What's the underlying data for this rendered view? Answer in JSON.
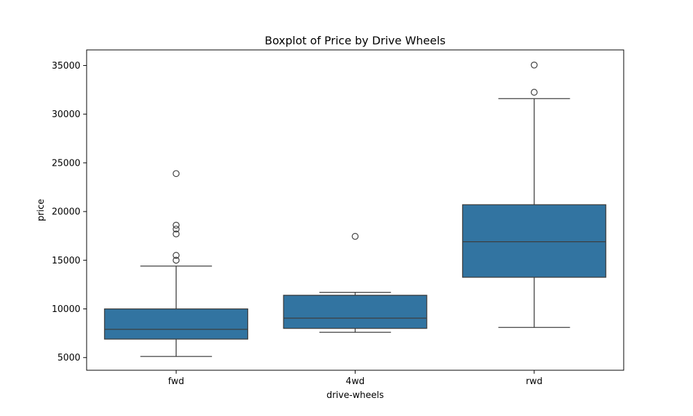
{
  "chart_data": {
    "type": "boxplot",
    "title": "Boxplot of Price by Drive Wheels",
    "xlabel": "drive-wheels",
    "ylabel": "price",
    "ylim": [
      3700,
      36600
    ],
    "yticks": [
      5000,
      10000,
      15000,
      20000,
      25000,
      30000,
      35000
    ],
    "categories": [
      "fwd",
      "4wd",
      "rwd"
    ],
    "boxes": [
      {
        "category": "fwd",
        "whisker_low": 5118,
        "q1": 6900,
        "median": 7900,
        "q3": 10000,
        "whisker_high": 14400,
        "outliers": [
          15000,
          15500,
          17700,
          18200,
          18600,
          23900
        ]
      },
      {
        "category": "4wd",
        "whisker_low": 7600,
        "q1": 8000,
        "median": 9050,
        "q3": 11400,
        "whisker_high": 11700,
        "outliers": [
          17450
        ]
      },
      {
        "category": "rwd",
        "whisker_low": 8100,
        "q1": 13250,
        "median": 16900,
        "q3": 20700,
        "whisker_high": 31600,
        "outliers": [
          32250,
          35050
        ]
      }
    ],
    "colors": {
      "box_fill": "#3274a1",
      "line": "#3d3d3d"
    },
    "grid": false
  }
}
